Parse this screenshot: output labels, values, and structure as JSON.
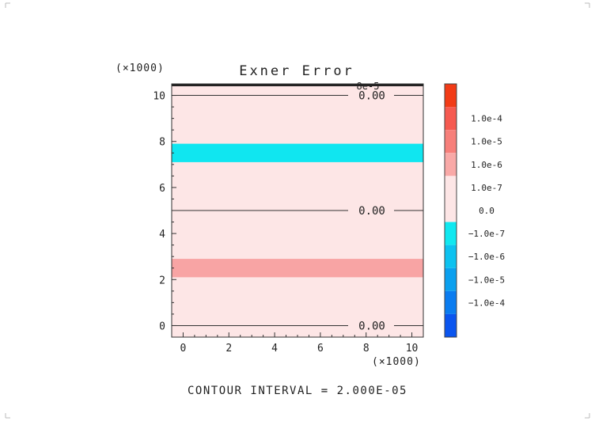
{
  "chart_data": {
    "type": "contour",
    "title": "Exner Error",
    "footer": "CONTOUR INTERVAL = 2.000E-05",
    "x_multiplier_label": "(×1000)",
    "y_multiplier_label": "(×1000)",
    "xlim": [
      -0.5,
      10.5
    ],
    "ylim": [
      -0.5,
      10.5
    ],
    "xticks": [
      0,
      2,
      4,
      6,
      8,
      10
    ],
    "yticks": [
      0,
      2,
      4,
      6,
      8,
      10
    ],
    "background_color": "#fde6e6",
    "bands": [
      {
        "y_from": 2.1,
        "y_to": 2.9,
        "color": "#f8a4a4"
      },
      {
        "y_from": 7.1,
        "y_to": 7.9,
        "color": "#10e6f0"
      }
    ],
    "contours": [
      {
        "y": 0.0,
        "label": "0.00"
      },
      {
        "y": 5.0,
        "label": "0.00"
      },
      {
        "y": 10.0,
        "label": "0.00"
      }
    ],
    "top_edge_label": "8e-5",
    "colorbar": {
      "levels": [
        "",
        "1.0e-4",
        "1.0e-5",
        "1.0e-6",
        "1.0e-7",
        "0.0",
        "−1.0e-7",
        "−1.0e-6",
        "−1.0e-5",
        "−1.0e-4",
        ""
      ],
      "colors": [
        "#f23b16",
        "#f65a50",
        "#f77f7a",
        "#f9a9a7",
        "#fde6e6",
        "#fde6e6",
        "#10e8f0",
        "#0cc2f0",
        "#0aa0ef",
        "#0a7cf0",
        "#0a55ef"
      ]
    }
  }
}
